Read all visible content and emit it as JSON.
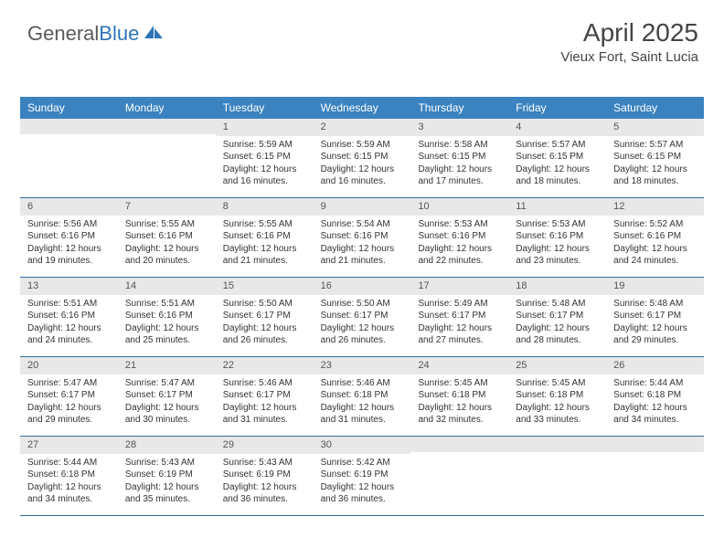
{
  "logo": {
    "part1": "General",
    "part2": "Blue"
  },
  "header": {
    "title": "April 2025",
    "subtitle": "Vieux Fort, Saint Lucia"
  },
  "colors": {
    "header_bg": "#3b83c0",
    "header_text": "#ffffff",
    "daynum_bg": "#e8e8e8",
    "rule": "#2e6ca4",
    "body_text": "#333333"
  },
  "daysOfWeek": [
    "Sunday",
    "Monday",
    "Tuesday",
    "Wednesday",
    "Thursday",
    "Friday",
    "Saturday"
  ],
  "weeks": [
    [
      {
        "empty": true
      },
      {
        "empty": true
      },
      {
        "n": "1",
        "sr": "5:59 AM",
        "ss": "6:15 PM",
        "dl": "12 hours and 16 minutes."
      },
      {
        "n": "2",
        "sr": "5:59 AM",
        "ss": "6:15 PM",
        "dl": "12 hours and 16 minutes."
      },
      {
        "n": "3",
        "sr": "5:58 AM",
        "ss": "6:15 PM",
        "dl": "12 hours and 17 minutes."
      },
      {
        "n": "4",
        "sr": "5:57 AM",
        "ss": "6:15 PM",
        "dl": "12 hours and 18 minutes."
      },
      {
        "n": "5",
        "sr": "5:57 AM",
        "ss": "6:15 PM",
        "dl": "12 hours and 18 minutes."
      }
    ],
    [
      {
        "n": "6",
        "sr": "5:56 AM",
        "ss": "6:16 PM",
        "dl": "12 hours and 19 minutes."
      },
      {
        "n": "7",
        "sr": "5:55 AM",
        "ss": "6:16 PM",
        "dl": "12 hours and 20 minutes."
      },
      {
        "n": "8",
        "sr": "5:55 AM",
        "ss": "6:16 PM",
        "dl": "12 hours and 21 minutes."
      },
      {
        "n": "9",
        "sr": "5:54 AM",
        "ss": "6:16 PM",
        "dl": "12 hours and 21 minutes."
      },
      {
        "n": "10",
        "sr": "5:53 AM",
        "ss": "6:16 PM",
        "dl": "12 hours and 22 minutes."
      },
      {
        "n": "11",
        "sr": "5:53 AM",
        "ss": "6:16 PM",
        "dl": "12 hours and 23 minutes."
      },
      {
        "n": "12",
        "sr": "5:52 AM",
        "ss": "6:16 PM",
        "dl": "12 hours and 24 minutes."
      }
    ],
    [
      {
        "n": "13",
        "sr": "5:51 AM",
        "ss": "6:16 PM",
        "dl": "12 hours and 24 minutes."
      },
      {
        "n": "14",
        "sr": "5:51 AM",
        "ss": "6:16 PM",
        "dl": "12 hours and 25 minutes."
      },
      {
        "n": "15",
        "sr": "5:50 AM",
        "ss": "6:17 PM",
        "dl": "12 hours and 26 minutes."
      },
      {
        "n": "16",
        "sr": "5:50 AM",
        "ss": "6:17 PM",
        "dl": "12 hours and 26 minutes."
      },
      {
        "n": "17",
        "sr": "5:49 AM",
        "ss": "6:17 PM",
        "dl": "12 hours and 27 minutes."
      },
      {
        "n": "18",
        "sr": "5:48 AM",
        "ss": "6:17 PM",
        "dl": "12 hours and 28 minutes."
      },
      {
        "n": "19",
        "sr": "5:48 AM",
        "ss": "6:17 PM",
        "dl": "12 hours and 29 minutes."
      }
    ],
    [
      {
        "n": "20",
        "sr": "5:47 AM",
        "ss": "6:17 PM",
        "dl": "12 hours and 29 minutes."
      },
      {
        "n": "21",
        "sr": "5:47 AM",
        "ss": "6:17 PM",
        "dl": "12 hours and 30 minutes."
      },
      {
        "n": "22",
        "sr": "5:46 AM",
        "ss": "6:17 PM",
        "dl": "12 hours and 31 minutes."
      },
      {
        "n": "23",
        "sr": "5:46 AM",
        "ss": "6:18 PM",
        "dl": "12 hours and 31 minutes."
      },
      {
        "n": "24",
        "sr": "5:45 AM",
        "ss": "6:18 PM",
        "dl": "12 hours and 32 minutes."
      },
      {
        "n": "25",
        "sr": "5:45 AM",
        "ss": "6:18 PM",
        "dl": "12 hours and 33 minutes."
      },
      {
        "n": "26",
        "sr": "5:44 AM",
        "ss": "6:18 PM",
        "dl": "12 hours and 34 minutes."
      }
    ],
    [
      {
        "n": "27",
        "sr": "5:44 AM",
        "ss": "6:18 PM",
        "dl": "12 hours and 34 minutes."
      },
      {
        "n": "28",
        "sr": "5:43 AM",
        "ss": "6:19 PM",
        "dl": "12 hours and 35 minutes."
      },
      {
        "n": "29",
        "sr": "5:43 AM",
        "ss": "6:19 PM",
        "dl": "12 hours and 36 minutes."
      },
      {
        "n": "30",
        "sr": "5:42 AM",
        "ss": "6:19 PM",
        "dl": "12 hours and 36 minutes."
      },
      {
        "empty": true
      },
      {
        "empty": true
      },
      {
        "empty": true
      }
    ]
  ],
  "labels": {
    "sunrise": "Sunrise: ",
    "sunset": "Sunset: ",
    "daylight": "Daylight: "
  }
}
